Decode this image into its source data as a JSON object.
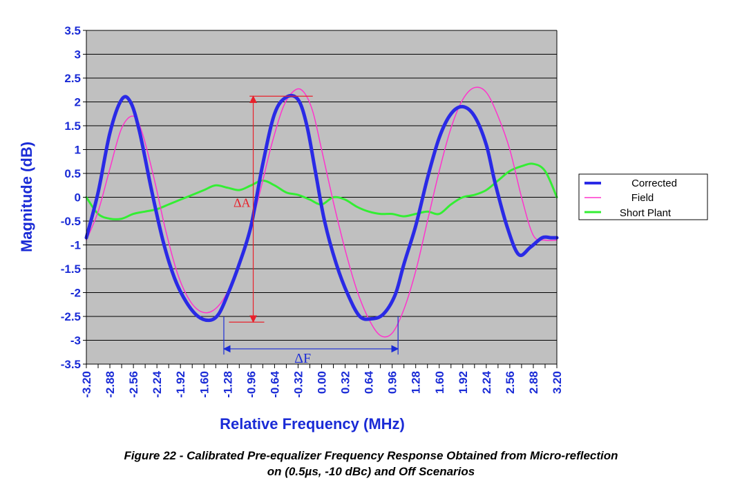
{
  "caption": {
    "line1": "Figure 22 - Calibrated Pre-equalizer Frequency Response Obtained from Micro-reflection",
    "line2": "on (0.5µs, -10 dBc) and Off Scenarios"
  },
  "chart_data": {
    "type": "line",
    "title": "",
    "xlabel": "Relative Frequency (MHz)",
    "ylabel": "Magnitude (dB)",
    "xlim": [
      -3.2,
      3.2
    ],
    "ylim": [
      -3.5,
      3.5
    ],
    "x_ticks": [
      "-3.20",
      "-2.88",
      "-2.56",
      "-2.24",
      "-1.92",
      "-1.60",
      "-1.28",
      "-0.96",
      "-0.64",
      "-0.32",
      "0.00",
      "0.32",
      "0.64",
      "0.96",
      "1.28",
      "1.60",
      "1.92",
      "2.24",
      "2.56",
      "2.88",
      "3.20"
    ],
    "y_ticks": [
      "3.5",
      "3",
      "2.5",
      "2",
      "1.5",
      "1",
      "0.5",
      "0",
      "-0.5",
      "-1",
      "-1.5",
      "-2",
      "-2.5",
      "-3",
      "-3.5"
    ],
    "grid": true,
    "plot_background": "#c0c0c0",
    "legend_position": "right",
    "series": [
      {
        "name": "Corrected",
        "color": "#2a2ae6",
        "x": [
          -3.2,
          -3.04,
          -2.88,
          -2.72,
          -2.6,
          -2.48,
          -2.32,
          -2.16,
          -2.0,
          -1.84,
          -1.68,
          -1.52,
          -1.4,
          -1.28,
          -1.12,
          -0.96,
          -0.8,
          -0.64,
          -0.48,
          -0.32,
          -0.2,
          -0.08,
          0.04,
          0.2,
          0.36,
          0.52,
          0.68,
          0.84,
          1.0,
          1.12,
          1.28,
          1.44,
          1.6,
          1.76,
          1.92,
          2.08,
          2.24,
          2.36,
          2.52,
          2.68,
          2.84,
          3.0,
          3.12,
          3.2
        ],
        "y": [
          -0.85,
          0.1,
          1.35,
          2.05,
          2.0,
          1.4,
          0.2,
          -0.9,
          -1.7,
          -2.2,
          -2.5,
          -2.58,
          -2.45,
          -2.05,
          -1.4,
          -0.6,
          0.7,
          1.75,
          2.1,
          2.05,
          1.5,
          0.5,
          -0.5,
          -1.4,
          -2.05,
          -2.5,
          -2.55,
          -2.45,
          -2.05,
          -1.4,
          -0.6,
          0.4,
          1.25,
          1.75,
          1.9,
          1.7,
          1.1,
          0.3,
          -0.6,
          -1.2,
          -1.05,
          -0.85,
          -0.85,
          -0.85
        ]
      },
      {
        "name": "Field",
        "color": "#ff33cc",
        "x": [
          -3.2,
          -3.04,
          -2.88,
          -2.72,
          -2.56,
          -2.44,
          -2.28,
          -2.12,
          -1.96,
          -1.8,
          -1.64,
          -1.48,
          -1.32,
          -1.16,
          -1.0,
          -0.84,
          -0.68,
          -0.52,
          -0.36,
          -0.24,
          -0.12,
          0.0,
          0.16,
          0.32,
          0.48,
          0.64,
          0.8,
          0.96,
          1.12,
          1.28,
          1.44,
          1.6,
          1.76,
          1.92,
          2.08,
          2.24,
          2.4,
          2.56,
          2.72,
          2.88,
          3.04,
          3.2
        ],
        "y": [
          -0.9,
          -0.3,
          0.6,
          1.45,
          1.7,
          1.35,
          0.4,
          -0.7,
          -1.6,
          -2.15,
          -2.4,
          -2.38,
          -2.1,
          -1.55,
          -0.85,
          0.1,
          1.1,
          1.9,
          2.25,
          2.2,
          1.8,
          1.0,
          -0.1,
          -1.1,
          -1.95,
          -2.55,
          -2.9,
          -2.85,
          -2.35,
          -1.55,
          -0.5,
          0.55,
          1.45,
          2.05,
          2.3,
          2.2,
          1.7,
          1.0,
          0.0,
          -0.8,
          -0.9,
          -0.9
        ]
      },
      {
        "name": "Short Plant",
        "color": "#33ee33",
        "x": [
          -3.2,
          -3.04,
          -2.88,
          -2.72,
          -2.56,
          -2.4,
          -2.24,
          -2.08,
          -1.92,
          -1.76,
          -1.6,
          -1.44,
          -1.28,
          -1.12,
          -0.96,
          -0.8,
          -0.64,
          -0.48,
          -0.32,
          -0.16,
          0.0,
          0.16,
          0.32,
          0.48,
          0.64,
          0.8,
          0.96,
          1.12,
          1.28,
          1.44,
          1.6,
          1.76,
          1.92,
          2.08,
          2.24,
          2.4,
          2.56,
          2.72,
          2.88,
          3.04,
          3.2
        ],
        "y": [
          0.0,
          -0.35,
          -0.45,
          -0.45,
          -0.35,
          -0.3,
          -0.25,
          -0.15,
          -0.05,
          0.05,
          0.15,
          0.25,
          0.2,
          0.15,
          0.25,
          0.35,
          0.25,
          0.1,
          0.05,
          -0.05,
          -0.15,
          0.0,
          -0.05,
          -0.2,
          -0.3,
          -0.35,
          -0.35,
          -0.4,
          -0.35,
          -0.3,
          -0.35,
          -0.15,
          0.0,
          0.05,
          0.15,
          0.35,
          0.55,
          0.65,
          0.7,
          0.55,
          0.0
        ]
      }
    ],
    "annotations": [
      {
        "label": "ΔA",
        "color": "#e8202a",
        "x": -0.93,
        "y_from": -2.62,
        "y_to": 2.12
      },
      {
        "label": "ΔF",
        "color": "#1a2bd6",
        "y": -3.18,
        "x_from": -1.33,
        "x_to": 1.04
      }
    ]
  }
}
